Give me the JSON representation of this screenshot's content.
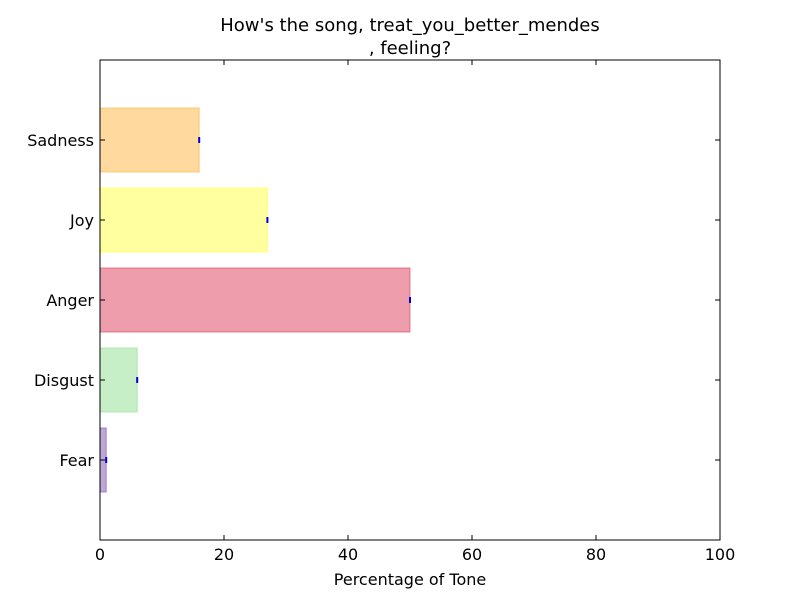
{
  "chart_data": {
    "type": "bar",
    "orientation": "horizontal",
    "title_lines": [
      "How's the song, treat_you_better_mendes",
      ", feeling?"
    ],
    "xlabel": "Percentage of Tone",
    "ylabel": "",
    "xlim": [
      0,
      100
    ],
    "xticks": [
      0,
      20,
      40,
      60,
      80,
      100
    ],
    "categories": [
      "Fear",
      "Disgust",
      "Anger",
      "Joy",
      "Sadness"
    ],
    "values": [
      1,
      6,
      50,
      27,
      16
    ],
    "colors": [
      "#7b4fae",
      "#90e090",
      "#dc3c58",
      "#ffff40",
      "#ffb43c"
    ],
    "error_marker_color": "#0000cc",
    "grid": false,
    "legend": "none"
  }
}
